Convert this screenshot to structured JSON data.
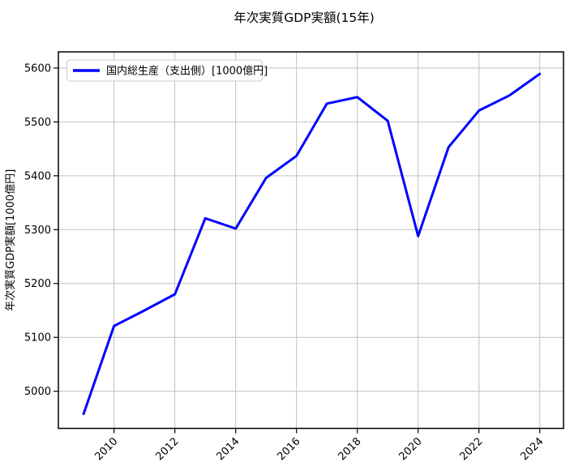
{
  "figure": {
    "background": "#ffffff"
  },
  "chart_data": {
    "type": "line",
    "title": "年次実質GDP実額(15年)",
    "xlabel": "",
    "ylabel": "年次実質GDP実額[1000億円]",
    "grid": true,
    "legend": {
      "position": "upper-left",
      "entries": [
        {
          "label": "国内総生産（支出側）[1000億円]",
          "color": "#0000ff"
        }
      ]
    },
    "x": [
      2009,
      2010,
      2011,
      2012,
      2013,
      2014,
      2015,
      2016,
      2017,
      2018,
      2019,
      2020,
      2021,
      2022,
      2023,
      2024
    ],
    "series": [
      {
        "name": "国内総生産（支出側）[1000億円]",
        "color": "#0000ff",
        "values": [
          4958,
          5121,
          5150,
          5180,
          5321,
          5302,
          5396,
          5437,
          5534,
          5546,
          5502,
          5288,
          5453,
          5521,
          5549,
          5589
        ]
      }
    ],
    "xticks": [
      2010,
      2012,
      2014,
      2016,
      2018,
      2020,
      2022,
      2024
    ],
    "yticks": [
      5000,
      5100,
      5200,
      5300,
      5400,
      5500,
      5600
    ],
    "xlim": [
      2008.17,
      2024.78
    ],
    "ylim": [
      4931,
      5630
    ],
    "xtick_rotation_deg": 45,
    "colors": {
      "line": "#0000ff",
      "grid": "#c0c0c0",
      "spine": "#000000",
      "text": "#000000",
      "legend_border": "#cccccc",
      "legend_bg": "#ffffff"
    }
  }
}
